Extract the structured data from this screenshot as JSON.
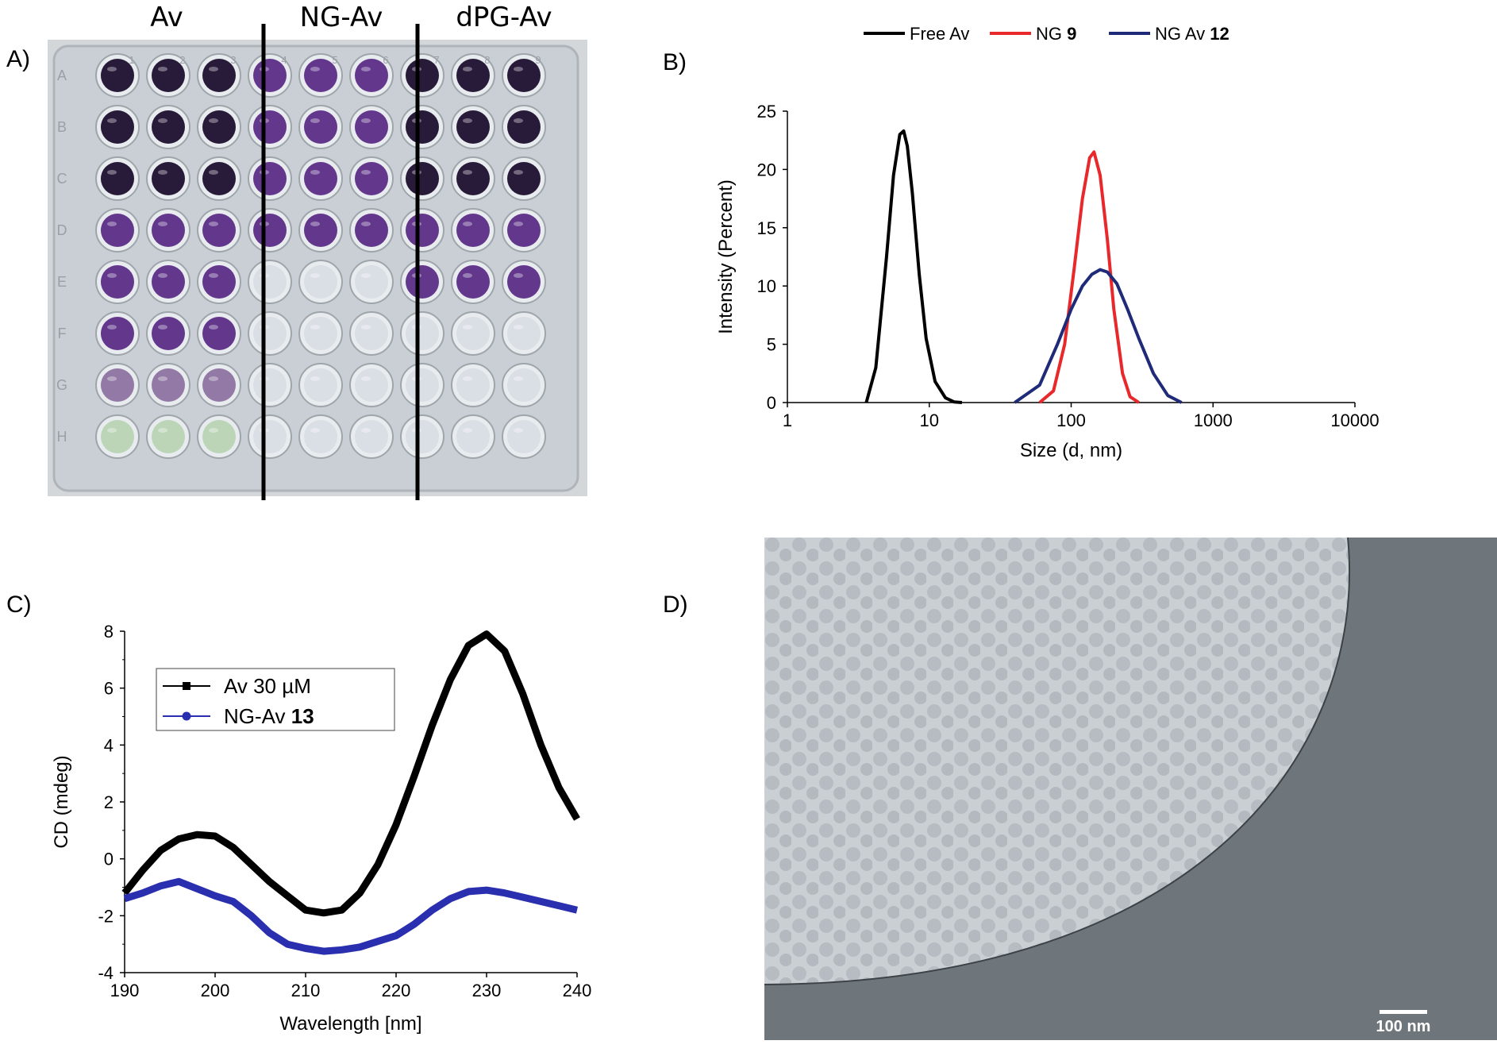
{
  "panels": {
    "a": {
      "letter": "A)",
      "groups": [
        "Av",
        "NG-Av",
        "dPG-Av"
      ],
      "columns": [
        "1",
        "2",
        "3",
        "4",
        "5",
        "6",
        "7",
        "8",
        "9"
      ],
      "rows": [
        "A",
        "B",
        "C",
        "D",
        "E",
        "F",
        "G",
        "H"
      ],
      "colors": {
        "plate": "#c9cfd4",
        "dark_well": "#1d0f2e",
        "purple_well": "#5b2d86",
        "pale_well": "#d9dde4",
        "green_well": "#b9d4b3"
      }
    },
    "b": {
      "letter": "B)"
    },
    "c": {
      "letter": "C)"
    },
    "d": {
      "letter": "D)",
      "scale_label": "100 nm",
      "colors": {
        "bright": "#c7cdd1",
        "dark": "#6f767b"
      }
    }
  },
  "chart_data": [
    {
      "id": "B",
      "type": "line",
      "xscale": "log",
      "xlabel": "Size (d, nm)",
      "ylabel": "Intensity (Percent)",
      "xlim": [
        1,
        10000
      ],
      "ylim": [
        0,
        25
      ],
      "xticks": [
        "1",
        "10",
        "100",
        "1000",
        "10000"
      ],
      "yticks": [
        "0",
        "5",
        "10",
        "15",
        "20",
        "25"
      ],
      "legend_position": "top",
      "series": [
        {
          "name": "Free Av",
          "name_bold": "",
          "color": "#000000",
          "x": [
            3.6,
            4.2,
            5.0,
            5.6,
            6.2,
            6.6,
            7.0,
            7.6,
            8.5,
            9.5,
            11,
            13,
            15,
            17
          ],
          "y": [
            0,
            3.0,
            12.5,
            19.5,
            23.0,
            23.3,
            22.0,
            18.0,
            11.0,
            5.5,
            1.8,
            0.4,
            0.05,
            0
          ]
        },
        {
          "name": "NG ",
          "name_bold": "9",
          "color": "#e8282b",
          "x": [
            60,
            75,
            90,
            105,
            120,
            135,
            145,
            160,
            180,
            200,
            230,
            260,
            300
          ],
          "y": [
            0,
            1.0,
            5.0,
            11.5,
            17.5,
            21.0,
            21.5,
            19.5,
            14.0,
            8.0,
            2.5,
            0.5,
            0
          ]
        },
        {
          "name": "NG Av ",
          "name_bold": "12",
          "color": "#1f2a78",
          "x": [
            40,
            60,
            80,
            100,
            120,
            140,
            160,
            180,
            210,
            250,
            300,
            380,
            480,
            600
          ],
          "y": [
            0,
            1.5,
            5.0,
            8.0,
            10.0,
            11.0,
            11.4,
            11.2,
            10.2,
            8.0,
            5.5,
            2.5,
            0.6,
            0
          ]
        }
      ]
    },
    {
      "id": "C",
      "type": "line",
      "xlabel": "Wavelength [nm]",
      "ylabel": "CD (mdeg)",
      "xlim": [
        190,
        240
      ],
      "ylim": [
        -4,
        8
      ],
      "xticks": [
        "190",
        "200",
        "210",
        "220",
        "230",
        "240"
      ],
      "yticks": [
        "-4",
        "-2",
        "0",
        "2",
        "4",
        "6",
        "8"
      ],
      "legend_position": "upper-left",
      "series": [
        {
          "name": "Av 30 µM",
          "name_bold": "",
          "color": "#000000",
          "marker": "square",
          "x": [
            190,
            192,
            194,
            196,
            198,
            200,
            202,
            204,
            206,
            208,
            210,
            212,
            214,
            216,
            218,
            220,
            222,
            224,
            226,
            228,
            230,
            232,
            234,
            236,
            238,
            240
          ],
          "y": [
            -1.2,
            -0.4,
            0.3,
            0.7,
            0.85,
            0.8,
            0.4,
            -0.2,
            -0.8,
            -1.3,
            -1.8,
            -1.9,
            -1.8,
            -1.2,
            -0.2,
            1.2,
            2.9,
            4.7,
            6.3,
            7.5,
            7.9,
            7.3,
            5.8,
            4.0,
            2.5,
            1.4
          ]
        },
        {
          "name": "NG-Av ",
          "name_bold": "13",
          "color": "#2a2fb0",
          "marker": "circle",
          "x": [
            190,
            192,
            194,
            196,
            198,
            200,
            202,
            204,
            206,
            208,
            210,
            212,
            214,
            216,
            218,
            220,
            222,
            224,
            226,
            228,
            230,
            232,
            234,
            236,
            238,
            240
          ],
          "y": [
            -1.4,
            -1.2,
            -0.95,
            -0.8,
            -1.05,
            -1.3,
            -1.5,
            -2.0,
            -2.6,
            -3.0,
            -3.15,
            -3.25,
            -3.2,
            -3.1,
            -2.9,
            -2.7,
            -2.3,
            -1.8,
            -1.4,
            -1.15,
            -1.1,
            -1.2,
            -1.35,
            -1.5,
            -1.65,
            -1.8
          ]
        }
      ]
    }
  ]
}
